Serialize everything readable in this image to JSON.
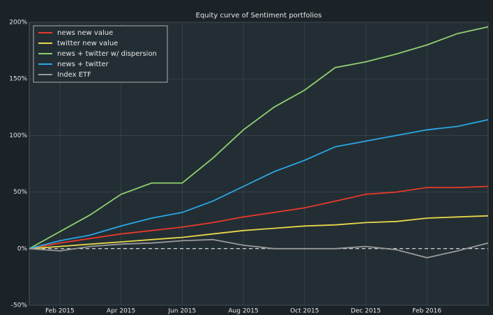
{
  "chart_data": {
    "type": "line",
    "title": "Equity curve of Sentiment portfolios",
    "x": [
      "2015-01",
      "2015-02",
      "2015-03",
      "2015-04",
      "2015-05",
      "2015-06",
      "2015-07",
      "2015-08",
      "2015-09",
      "2015-10",
      "2015-11",
      "2015-12",
      "2016-01",
      "2016-02",
      "2016-03",
      "2016-04"
    ],
    "xlim": [
      "2015-01",
      "2016-04"
    ],
    "xticks": [
      {
        "value": "2015-02",
        "label": "Feb 2015"
      },
      {
        "value": "2015-04",
        "label": "Apr 2015"
      },
      {
        "value": "2015-06",
        "label": "Jun 2015"
      },
      {
        "value": "2015-08",
        "label": "Aug 2015"
      },
      {
        "value": "2015-10",
        "label": "Oct 2015"
      },
      {
        "value": "2015-12",
        "label": "Dec 2015"
      },
      {
        "value": "2016-02",
        "label": "Feb 2016"
      }
    ],
    "ylim": [
      -50,
      200
    ],
    "yticks": [
      {
        "value": -50,
        "label": "-50%"
      },
      {
        "value": 0,
        "label": "0%"
      },
      {
        "value": 50,
        "label": "50%"
      },
      {
        "value": 100,
        "label": "100%"
      },
      {
        "value": 150,
        "label": "150%"
      },
      {
        "value": 200,
        "label": "200%"
      }
    ],
    "grid": true,
    "legend": "upper left",
    "series": [
      {
        "name": "news new value",
        "color": "#e8392a",
        "values": [
          0,
          5,
          9,
          13,
          16,
          19,
          23,
          28,
          32,
          36,
          42,
          48,
          50,
          54,
          54,
          55
        ]
      },
      {
        "name": "twitter new value",
        "color": "#e8d84a",
        "values": [
          0,
          2,
          4,
          6,
          8,
          10,
          13,
          16,
          18,
          20,
          21,
          23,
          24,
          27,
          28,
          29
        ]
      },
      {
        "name": "news + twitter w/ dispersion",
        "color": "#90d070",
        "values": [
          0,
          15,
          30,
          48,
          58,
          58,
          80,
          105,
          125,
          140,
          160,
          165,
          172,
          180,
          190,
          196
        ]
      },
      {
        "name": "news + twitter",
        "color": "#2aa8e8",
        "values": [
          0,
          7,
          12,
          20,
          27,
          32,
          42,
          55,
          68,
          78,
          90,
          95,
          100,
          105,
          108,
          114
        ]
      },
      {
        "name": "Index ETF",
        "color": "#9a9a9a",
        "values": [
          0,
          -2,
          2,
          4,
          5,
          7,
          8,
          3,
          0,
          0,
          0,
          2,
          -1,
          -8,
          -2,
          5
        ]
      }
    ]
  }
}
